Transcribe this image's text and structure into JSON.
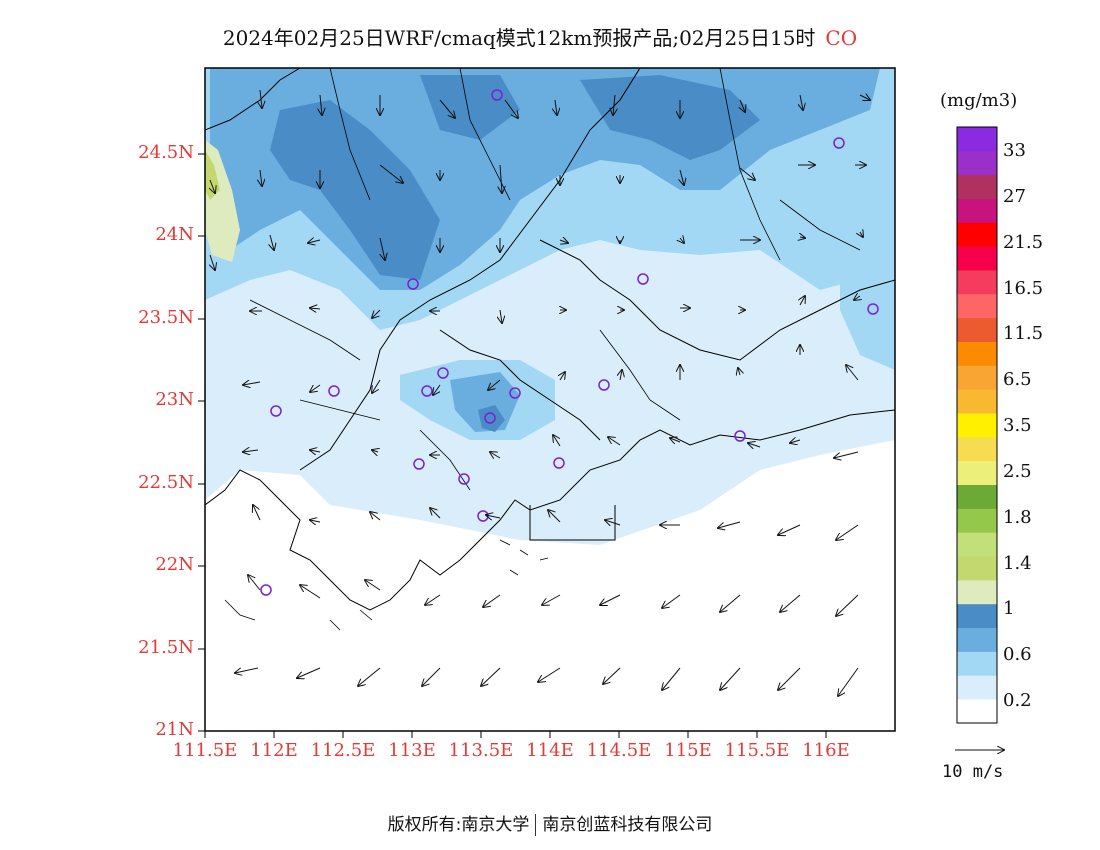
{
  "title": {
    "text": "2024年02月25日WRF/cmaq模式12km预报产品;02月25日15时",
    "species": "CO"
  },
  "colors": {
    "tick_labels": "#e53935",
    "coast": "#000000",
    "station_marker": "#7a1fd6"
  },
  "map": {
    "lon_ticks": [
      "111.5E",
      "112E",
      "112.5E",
      "113E",
      "113.5E",
      "114E",
      "114.5E",
      "115E",
      "115.5E",
      "116E"
    ],
    "lat_ticks": [
      "21N",
      "21.5N",
      "22N",
      "22.5N",
      "23N",
      "23.5N",
      "24N",
      "24.5N"
    ]
  },
  "legend": {
    "unit": "(mg/m3)",
    "colors": [
      "#ffffff",
      "#d9eefa",
      "#a3d8f5",
      "#6aaee0",
      "#4a8cc6",
      "#deebbe",
      "#c3d86f",
      "#c2e07a",
      "#93c84a",
      "#6aaa35",
      "#ecf07a",
      "#f5dc50",
      "#fff000",
      "#f8b830",
      "#f9a534",
      "#fb8b00",
      "#ec5a2f",
      "#fe6666",
      "#f63c5e",
      "#f7004b",
      "#ff0000",
      "#c8127d",
      "#b03060",
      "#9b30c8",
      "#8a2be2"
    ],
    "labels": [
      "0.2",
      "0.6",
      "1",
      "1.4",
      "1.8",
      "2.5",
      "3.5",
      "6.5",
      "11.5",
      "16.5",
      "21.5",
      "27",
      "33"
    ]
  },
  "wind_reference": {
    "label": "10 m/s"
  },
  "footer": {
    "left": "版权所有:南京大学",
    "right": "南京创蓝科技有限公司"
  }
}
